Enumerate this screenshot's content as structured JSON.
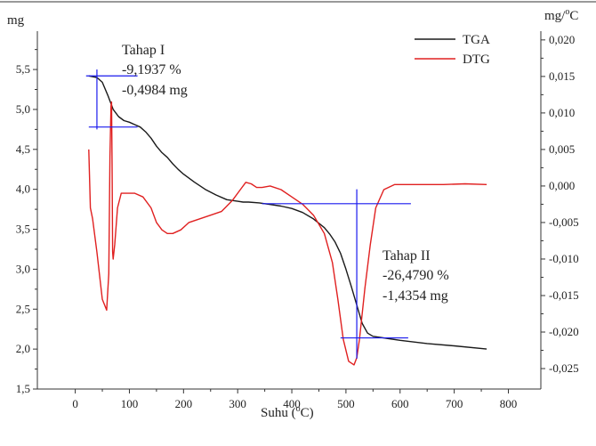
{
  "chart_data": {
    "type": "line",
    "xlabel": "Suhu",
    "xlabel_unit": "C",
    "ylabel_left": "mg",
    "ylabel_right_base": "mg/",
    "ylabel_right_unit": "C",
    "xlim": [
      -70,
      860
    ],
    "ylim_left": [
      1.5,
      5.98
    ],
    "ylim_right": [
      -0.0278,
      0.0212
    ],
    "x_ticks": [
      0,
      100,
      200,
      300,
      400,
      500,
      600,
      700,
      800
    ],
    "x_tick_labels": [
      "0",
      "100",
      "200",
      "300",
      "400",
      "500",
      "600",
      "700",
      "800"
    ],
    "yl_ticks": [
      1.5,
      2.0,
      2.5,
      3.0,
      3.5,
      4.0,
      4.5,
      5.0,
      5.5
    ],
    "yl_tick_labels": [
      "1,5",
      "2,0",
      "2,5",
      "3,0",
      "3,5",
      "4,0",
      "4,5",
      "5,0",
      "5,5"
    ],
    "yr_ticks": [
      -0.025,
      -0.02,
      -0.015,
      -0.01,
      -0.005,
      0.0,
      0.005,
      0.01,
      0.015,
      0.02
    ],
    "yr_tick_labels": [
      "-0,025",
      "-0,020",
      "-0,015",
      "-0,010",
      "-0,005",
      "0,000",
      "0,005",
      "0,010",
      "0,015",
      "0,020"
    ],
    "grid": false,
    "legend_position": "top-right",
    "series": [
      {
        "name": "TGA",
        "axis": "left",
        "color": "#1a1a1a",
        "x": [
          25,
          40,
          50,
          60,
          70,
          80,
          90,
          100,
          110,
          120,
          130,
          140,
          150,
          160,
          170,
          180,
          190,
          200,
          220,
          240,
          260,
          280,
          300,
          310,
          320,
          340,
          360,
          380,
          400,
          420,
          440,
          460,
          470,
          480,
          490,
          500,
          510,
          520,
          530,
          540,
          550,
          560,
          580,
          600,
          650,
          700,
          760
        ],
        "y": [
          5.42,
          5.4,
          5.34,
          5.18,
          5.0,
          4.91,
          4.86,
          4.84,
          4.81,
          4.78,
          4.72,
          4.64,
          4.54,
          4.46,
          4.4,
          4.32,
          4.25,
          4.19,
          4.09,
          4.0,
          3.93,
          3.87,
          3.85,
          3.84,
          3.84,
          3.83,
          3.81,
          3.79,
          3.76,
          3.71,
          3.63,
          3.52,
          3.44,
          3.34,
          3.2,
          3.0,
          2.78,
          2.55,
          2.32,
          2.2,
          2.16,
          2.15,
          2.13,
          2.11,
          2.07,
          2.04,
          2.0
        ]
      },
      {
        "name": "DTG",
        "axis": "right",
        "color": "#e02020",
        "x": [
          25,
          28,
          32,
          40,
          50,
          58,
          62,
          64,
          66,
          67,
          68,
          69,
          70,
          73,
          78,
          85,
          95,
          110,
          125,
          140,
          150,
          160,
          170,
          180,
          195,
          210,
          230,
          250,
          270,
          290,
          305,
          315,
          325,
          335,
          345,
          360,
          380,
          400,
          420,
          440,
          460,
          475,
          485,
          495,
          505,
          515,
          520,
          525,
          535,
          545,
          555,
          570,
          590,
          610,
          640,
          680,
          720,
          760
        ],
        "y": [
          0.005,
          -0.003,
          -0.0045,
          -0.009,
          -0.0155,
          -0.017,
          -0.012,
          0.004,
          0.011,
          0.0115,
          0.003,
          -0.009,
          -0.01,
          -0.008,
          -0.003,
          -0.001,
          -0.001,
          -0.001,
          -0.0015,
          -0.003,
          -0.005,
          -0.006,
          -0.0065,
          -0.0065,
          -0.006,
          -0.005,
          -0.0045,
          -0.004,
          -0.0035,
          -0.002,
          -0.0005,
          0.0005,
          0.0003,
          -0.0002,
          -0.0002,
          0.0,
          -0.0005,
          -0.0015,
          -0.0025,
          -0.004,
          -0.0065,
          -0.0105,
          -0.0155,
          -0.021,
          -0.024,
          -0.0245,
          -0.0235,
          -0.021,
          -0.014,
          -0.008,
          -0.003,
          -0.0005,
          0.0002,
          0.0002,
          0.0002,
          0.0002,
          0.0003,
          0.0002
        ]
      }
    ],
    "annotations": [
      {
        "id": "tahap1",
        "lines": [
          "Tahap I",
          "-9,1937 %",
          "-0,4984 mg"
        ],
        "color": "#1a1aaa"
      },
      {
        "id": "tahap2",
        "lines": [
          "Tahap II",
          "-26,4790 %",
          "-1,4354 mg"
        ],
        "color": "#1a1aaa"
      }
    ],
    "guides": {
      "color": "#1a1aee",
      "stage1": {
        "x_center": 40,
        "y_top": 5.42,
        "y_bottom": 4.78,
        "x_left": 20,
        "x_right": 115,
        "vertical_top": 5.5,
        "vertical_bottom": 4.75
      },
      "stage2": {
        "x_center": 520,
        "y_top": 3.82,
        "y_bottom": 2.14,
        "x_left_top": 345,
        "x_right_top": 620,
        "x_left_bottom": 490,
        "x_right_bottom": 615,
        "vertical_top": 4.0,
        "vertical_bottom": 1.88
      }
    }
  }
}
